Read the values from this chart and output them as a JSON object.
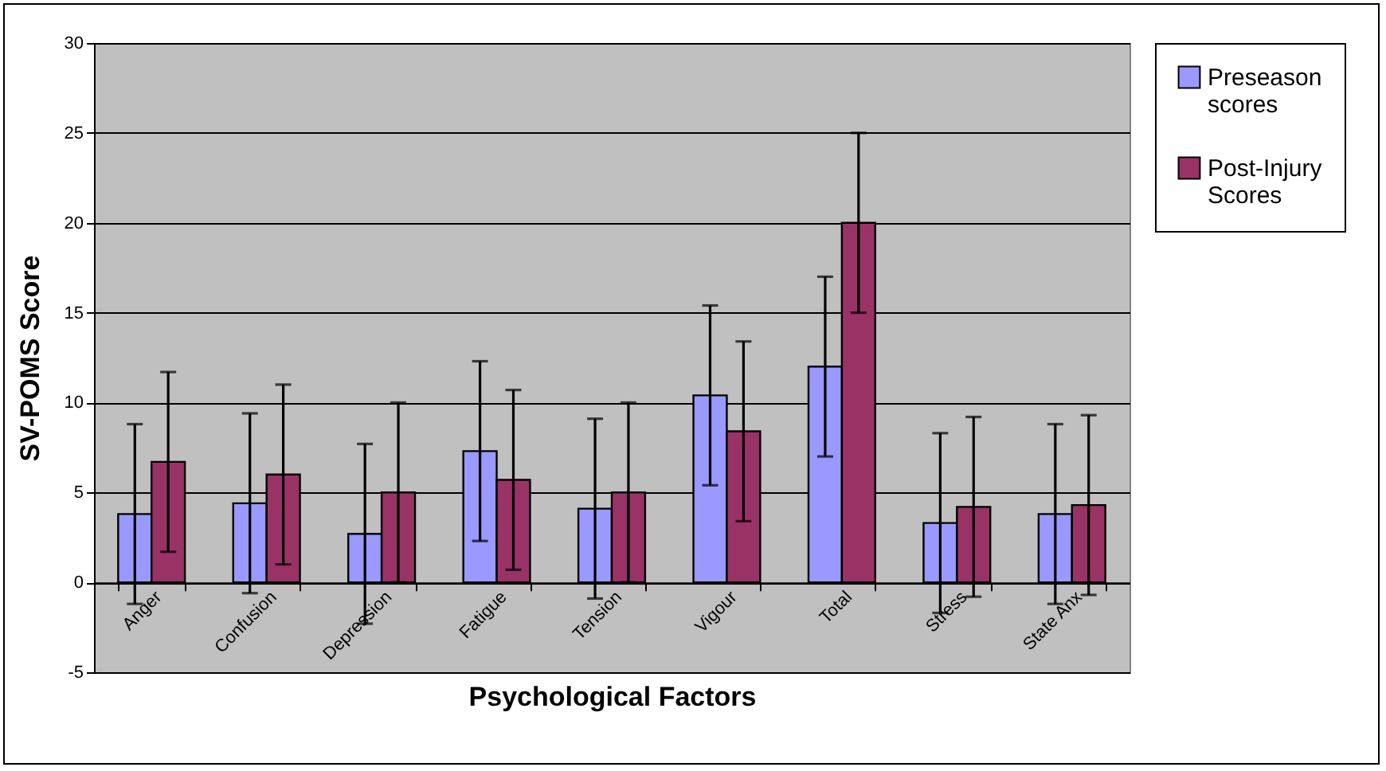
{
  "chart_data": {
    "type": "bar",
    "xlabel": "Psychological Factors",
    "ylabel": "SV-POMS Score",
    "categories": [
      "Anger",
      "Confusion",
      "Depression",
      "Fatigue",
      "Tension",
      "Vigour",
      "Total",
      "Stress",
      "State Anx"
    ],
    "series": [
      {
        "name": "Preseason scores",
        "color": "#9999ff",
        "values": [
          3.8,
          4.4,
          2.7,
          7.3,
          4.1,
          10.4,
          12.0,
          3.3,
          3.8
        ],
        "errors": [
          5,
          5,
          5,
          5,
          5,
          5,
          5,
          5,
          5
        ]
      },
      {
        "name": "Post-Injury Scores",
        "color": "#993366",
        "values": [
          6.7,
          6.0,
          5.0,
          5.7,
          5.0,
          8.4,
          20.0,
          4.2,
          4.3
        ],
        "errors": [
          5,
          5,
          5,
          5,
          5,
          5,
          5,
          5,
          5
        ]
      }
    ],
    "ylim": [
      -5,
      30
    ],
    "yticks": [
      -5,
      0,
      5,
      10,
      15,
      20,
      25,
      30
    ],
    "grid": "y",
    "legend": "right"
  }
}
